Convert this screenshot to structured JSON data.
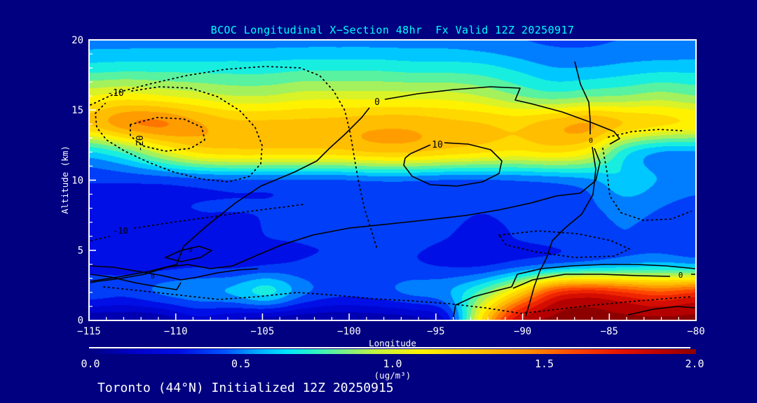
{
  "window": {
    "background": "#000080"
  },
  "title": "BCOC Longitudinal X−Section 48hr  Fx Valid 12Z 20250917",
  "caption": "Toronto (44°N) Initialized 12Z 20250915",
  "colors": {
    "title_text": "#00FFFF",
    "axis_text": "#FFFFFF",
    "contour": "#000000",
    "background": "#000080"
  },
  "chart_data": {
    "type": "heatmap",
    "title": "BCOC Longitudinal X−Section 48hr  Fx Valid 12Z 20250917",
    "subtitle": "Toronto (44°N) Initialized 12Z 20250915",
    "xlabel": "Longitude",
    "ylabel": "Altitude (km)",
    "x_tick_labels": [
      "−115",
      "−110",
      "−105",
      "−100",
      "−95",
      "−90",
      "−85",
      "−80"
    ],
    "y_tick_labels": [
      "20",
      "15",
      "10",
      "5",
      "0"
    ],
    "x_range": [
      -115,
      -80
    ],
    "y_range_km": [
      0,
      20
    ],
    "grid_on": false,
    "legend_position": "bottom",
    "x": [
      -115,
      -112.9,
      -110.9,
      -108.8,
      -106.8,
      -104.7,
      -102.6,
      -100.6,
      -98.5,
      -96.5,
      -94.4,
      -92.4,
      -90.3,
      -88.2,
      -86.2,
      -84.1,
      -82.1,
      -80
    ],
    "y_km": [
      20,
      18,
      16,
      14,
      12,
      10,
      8,
      6,
      4,
      2,
      0
    ],
    "grid_ug_m3": [
      [
        0.5,
        0.5,
        0.5,
        0.5,
        0.5,
        0.5,
        0.5,
        0.5,
        0.5,
        0.5,
        0.5,
        0.48,
        0.45,
        0.42,
        0.42,
        0.45,
        0.45,
        0.45
      ],
      [
        0.68,
        0.7,
        0.7,
        0.7,
        0.7,
        0.7,
        0.72,
        0.72,
        0.72,
        0.7,
        0.7,
        0.68,
        0.62,
        0.55,
        0.55,
        0.58,
        0.6,
        0.6
      ],
      [
        1.05,
        1.1,
        1.05,
        1.0,
        0.95,
        0.95,
        1.0,
        1.0,
        1.0,
        1.0,
        1.0,
        0.95,
        0.85,
        0.78,
        0.82,
        0.85,
        0.9,
        0.85
      ],
      [
        1.3,
        1.48,
        1.52,
        1.4,
        1.3,
        1.3,
        1.3,
        1.32,
        1.35,
        1.35,
        1.3,
        1.28,
        1.25,
        1.35,
        1.42,
        1.3,
        1.22,
        1.18
      ],
      [
        0.6,
        0.75,
        1.0,
        1.2,
        1.25,
        1.25,
        1.25,
        1.25,
        1.3,
        1.3,
        1.25,
        1.2,
        1.15,
        1.2,
        1.1,
        0.65,
        0.5,
        0.5
      ],
      [
        0.35,
        0.35,
        0.35,
        0.38,
        0.4,
        0.4,
        0.4,
        0.4,
        0.42,
        0.42,
        0.4,
        0.4,
        0.42,
        0.45,
        0.5,
        0.65,
        0.55,
        0.5
      ],
      [
        0.3,
        0.3,
        0.32,
        0.35,
        0.35,
        0.35,
        0.38,
        0.38,
        0.4,
        0.4,
        0.38,
        0.35,
        0.38,
        0.4,
        0.42,
        0.5,
        0.45,
        0.4
      ],
      [
        0.3,
        0.28,
        0.3,
        0.32,
        0.32,
        0.35,
        0.35,
        0.35,
        0.38,
        0.38,
        0.35,
        0.32,
        0.35,
        0.38,
        0.4,
        0.45,
        0.4,
        0.38
      ],
      [
        0.28,
        0.3,
        0.3,
        0.32,
        0.3,
        0.32,
        0.35,
        0.35,
        0.35,
        0.35,
        0.32,
        0.3,
        0.35,
        0.4,
        0.45,
        0.5,
        0.55,
        0.5
      ],
      [
        0.45,
        0.4,
        0.5,
        0.55,
        0.6,
        0.75,
        0.5,
        0.4,
        0.42,
        0.5,
        0.55,
        0.8,
        1.2,
        1.7,
        1.8,
        1.7,
        1.6,
        1.7
      ],
      [
        0.05,
        0.04,
        0.05,
        0.2,
        0.12,
        0.06,
        0.05,
        0.05,
        0.06,
        0.08,
        0.2,
        1.2,
        1.9,
        2.0,
        2.0,
        2.0,
        2.0,
        2.0
      ]
    ],
    "colormap": [
      [
        0.0,
        "#000082"
      ],
      [
        0.15,
        "#0000C8"
      ],
      [
        0.3,
        "#000FE6"
      ],
      [
        0.45,
        "#0055FF"
      ],
      [
        0.55,
        "#00A8FF"
      ],
      [
        0.65,
        "#00E6FF"
      ],
      [
        0.75,
        "#30F5C0"
      ],
      [
        0.85,
        "#80F080"
      ],
      [
        0.95,
        "#C8F23C"
      ],
      [
        1.1,
        "#FFF200"
      ],
      [
        1.3,
        "#FFBE00"
      ],
      [
        1.45,
        "#FF8C00"
      ],
      [
        1.6,
        "#FF4600"
      ],
      [
        1.75,
        "#E61400"
      ],
      [
        1.9,
        "#B40000"
      ],
      [
        2.0,
        "#8C0000"
      ]
    ],
    "colorbar": {
      "tick_labels": [
        "0.0",
        "0.5",
        "1.0",
        "1.5",
        "2.0"
      ],
      "units": "(ug/m³)",
      "range": [
        0,
        2
      ]
    },
    "contour_labels": {
      "upper_dotted": "-10",
      "upper_dotted_rotated": "-20",
      "mid_zero": "0",
      "mid_ten": "10",
      "right_zero_small": "0",
      "lower_dotted": "-10",
      "bottom_right_zero": "0",
      "bottom_left_zero_a": "0",
      "bottom_left_zero_b": "0"
    }
  }
}
